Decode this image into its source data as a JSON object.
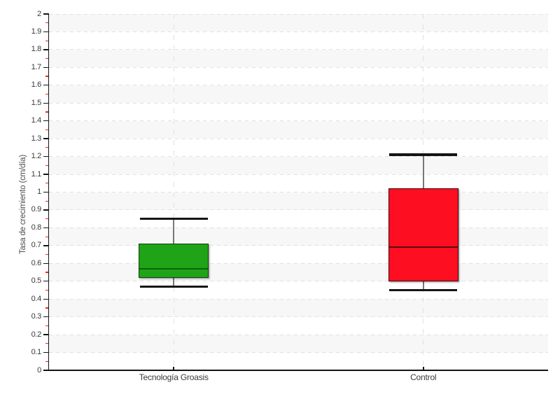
{
  "chart_data": {
    "type": "boxplot",
    "title": "",
    "xlabel": "",
    "ylabel": "Tasa de crecimiento (cm/día)",
    "ylim": [
      0,
      2
    ],
    "ytick_step": 0.1,
    "yminor_tick_step": 0.05,
    "grid": true,
    "legend": false,
    "background_bands": true,
    "categories": [
      "Tecnología Groasis",
      "Control"
    ],
    "series": [
      {
        "name": "Tecnología Groasis",
        "low": 0.47,
        "q1": 0.52,
        "median": 0.57,
        "q3": 0.71,
        "high": 0.85,
        "color": "#1fa317"
      },
      {
        "name": "Control",
        "low": 0.45,
        "q1": 0.5,
        "median": 0.69,
        "q3": 1.02,
        "high": 1.21,
        "color": "#fd0e21"
      }
    ]
  },
  "style": {
    "background": "#ffffff",
    "band_color": "#f7f7f7",
    "grid_color": "#e1e1e1",
    "axis_color": "#141414",
    "tick_label_color": "#3a3a3a",
    "axis_title_color": "#4d4d4d",
    "minor_tick_color": "#ff2016",
    "whisker_color": "#787878",
    "cap_color": "#141414",
    "series_styles": [
      {
        "fill": "#1fa317",
        "border": "#173f0f",
        "median_color": "#0c640c"
      },
      {
        "fill": "#fd0e21",
        "border": "#42080d",
        "median_color": "#5c0a12"
      }
    ]
  }
}
